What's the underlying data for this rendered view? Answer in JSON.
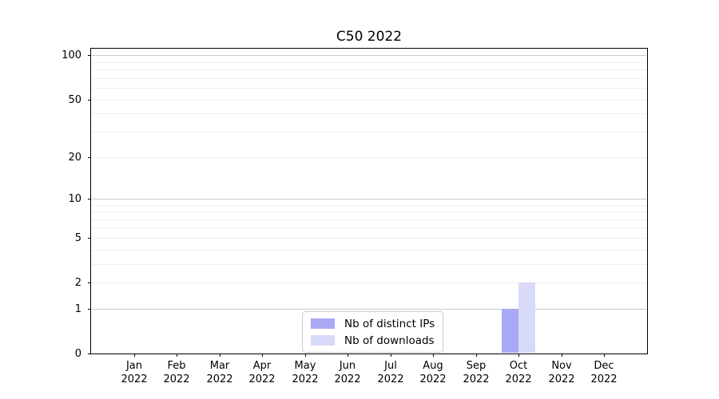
{
  "chart_data": {
    "type": "bar",
    "title": "C50 2022",
    "categories": [
      "Jan 2022",
      "Feb 2022",
      "Mar 2022",
      "Apr 2022",
      "May 2022",
      "Jun 2022",
      "Jul 2022",
      "Aug 2022",
      "Sep 2022",
      "Oct 2022",
      "Nov 2022",
      "Dec 2022"
    ],
    "series": [
      {
        "name": "Nb of distinct IPs",
        "color": "#a9a9f4",
        "values": [
          0,
          0,
          0,
          0,
          0,
          0,
          0,
          0,
          0,
          1,
          0,
          0
        ]
      },
      {
        "name": "Nb of downloads",
        "color": "#d9d9f8",
        "values": [
          0,
          0,
          0,
          0,
          0,
          0,
          0,
          0,
          0,
          2,
          0,
          0
        ]
      }
    ],
    "xlabel": "",
    "ylabel": "",
    "yscale": "log1p",
    "ylim": [
      0,
      112
    ],
    "yticks": [
      0,
      1,
      2,
      5,
      10,
      20,
      50,
      100
    ],
    "minor_gridline_values": [
      2,
      3,
      4,
      5,
      6,
      7,
      8,
      9,
      20,
      30,
      40,
      50,
      60,
      70,
      80,
      90
    ],
    "major_gridline_values": [
      1,
      10,
      100
    ],
    "grid": true,
    "legend_position": "lower center"
  },
  "colors": {
    "background": "#ffffff",
    "spine": "#000000",
    "grid_minor": "#eeeeee",
    "grid_major": "#c9c9c9",
    "tick_label": "#000000"
  }
}
